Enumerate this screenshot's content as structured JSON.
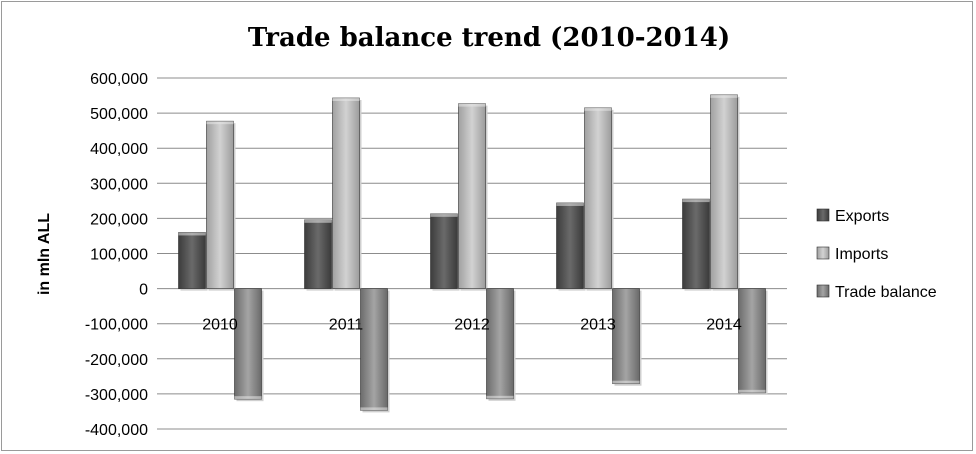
{
  "chart_data": {
    "type": "bar",
    "title": "Trade balance trend (2010-2014)",
    "xlabel": "",
    "ylabel": "in mln ALL",
    "categories": [
      "2010",
      "2011",
      "2012",
      "2013",
      "2014"
    ],
    "series": [
      {
        "name": "Exports",
        "values": [
          160000,
          196000,
          213000,
          244000,
          255000
        ],
        "color": "#555555"
      },
      {
        "name": "Imports",
        "values": [
          477000,
          543000,
          527000,
          515000,
          552000
        ],
        "color": "#b5b5b5"
      },
      {
        "name": "Trade balance",
        "values": [
          -315000,
          -347000,
          -314000,
          -271000,
          -297000
        ],
        "color": "#8a8a8a"
      }
    ],
    "ylim": [
      -400000,
      600000
    ],
    "yticks": [
      600000,
      500000,
      400000,
      300000,
      200000,
      100000,
      0,
      -100000,
      -200000,
      -300000,
      -400000
    ],
    "ytick_labels": [
      "600,000",
      "500,000",
      "400,000",
      "300,000",
      "200,000",
      "100,000",
      "0",
      "-100,000",
      "-200,000",
      "-300,000",
      "-400,000"
    ],
    "grid": true,
    "legend_position": "right"
  }
}
